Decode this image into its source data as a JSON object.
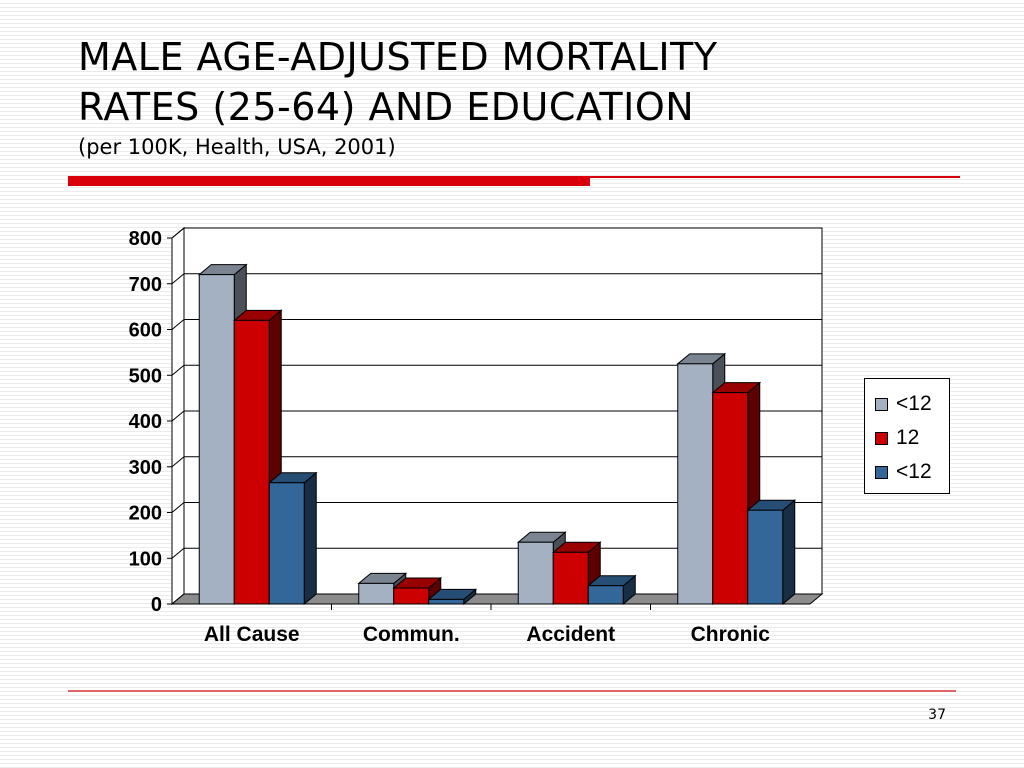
{
  "slide": {
    "title_line1": "MALE AGE-ADJUSTED MORTALITY",
    "title_line2": "RATES (25-64) AND EDUCATION",
    "subtitle": "(per 100K, Health, USA, 2001)",
    "page_number": "37",
    "accent_color": "#d9000b",
    "rule_color": "#e06666"
  },
  "chart_data": {
    "type": "bar",
    "style": "3d-clustered-column",
    "categories": [
      "All Cause",
      "Commun.",
      "Accident",
      "Chronic"
    ],
    "series": [
      {
        "name": "<12",
        "values": [
          720,
          45,
          135,
          525
        ],
        "color": "#a4b1c2"
      },
      {
        "name": "12",
        "values": [
          620,
          35,
          113,
          462
        ],
        "color": "#cc0000"
      },
      {
        "name": "<12",
        "values": [
          265,
          10,
          40,
          205
        ],
        "color": "#336699"
      }
    ],
    "y_ticks": [
      "0",
      "100",
      "200",
      "300",
      "400",
      "500",
      "600",
      "700",
      "800"
    ],
    "ylim": [
      0,
      800
    ],
    "grid": true,
    "legend_position": "right"
  }
}
